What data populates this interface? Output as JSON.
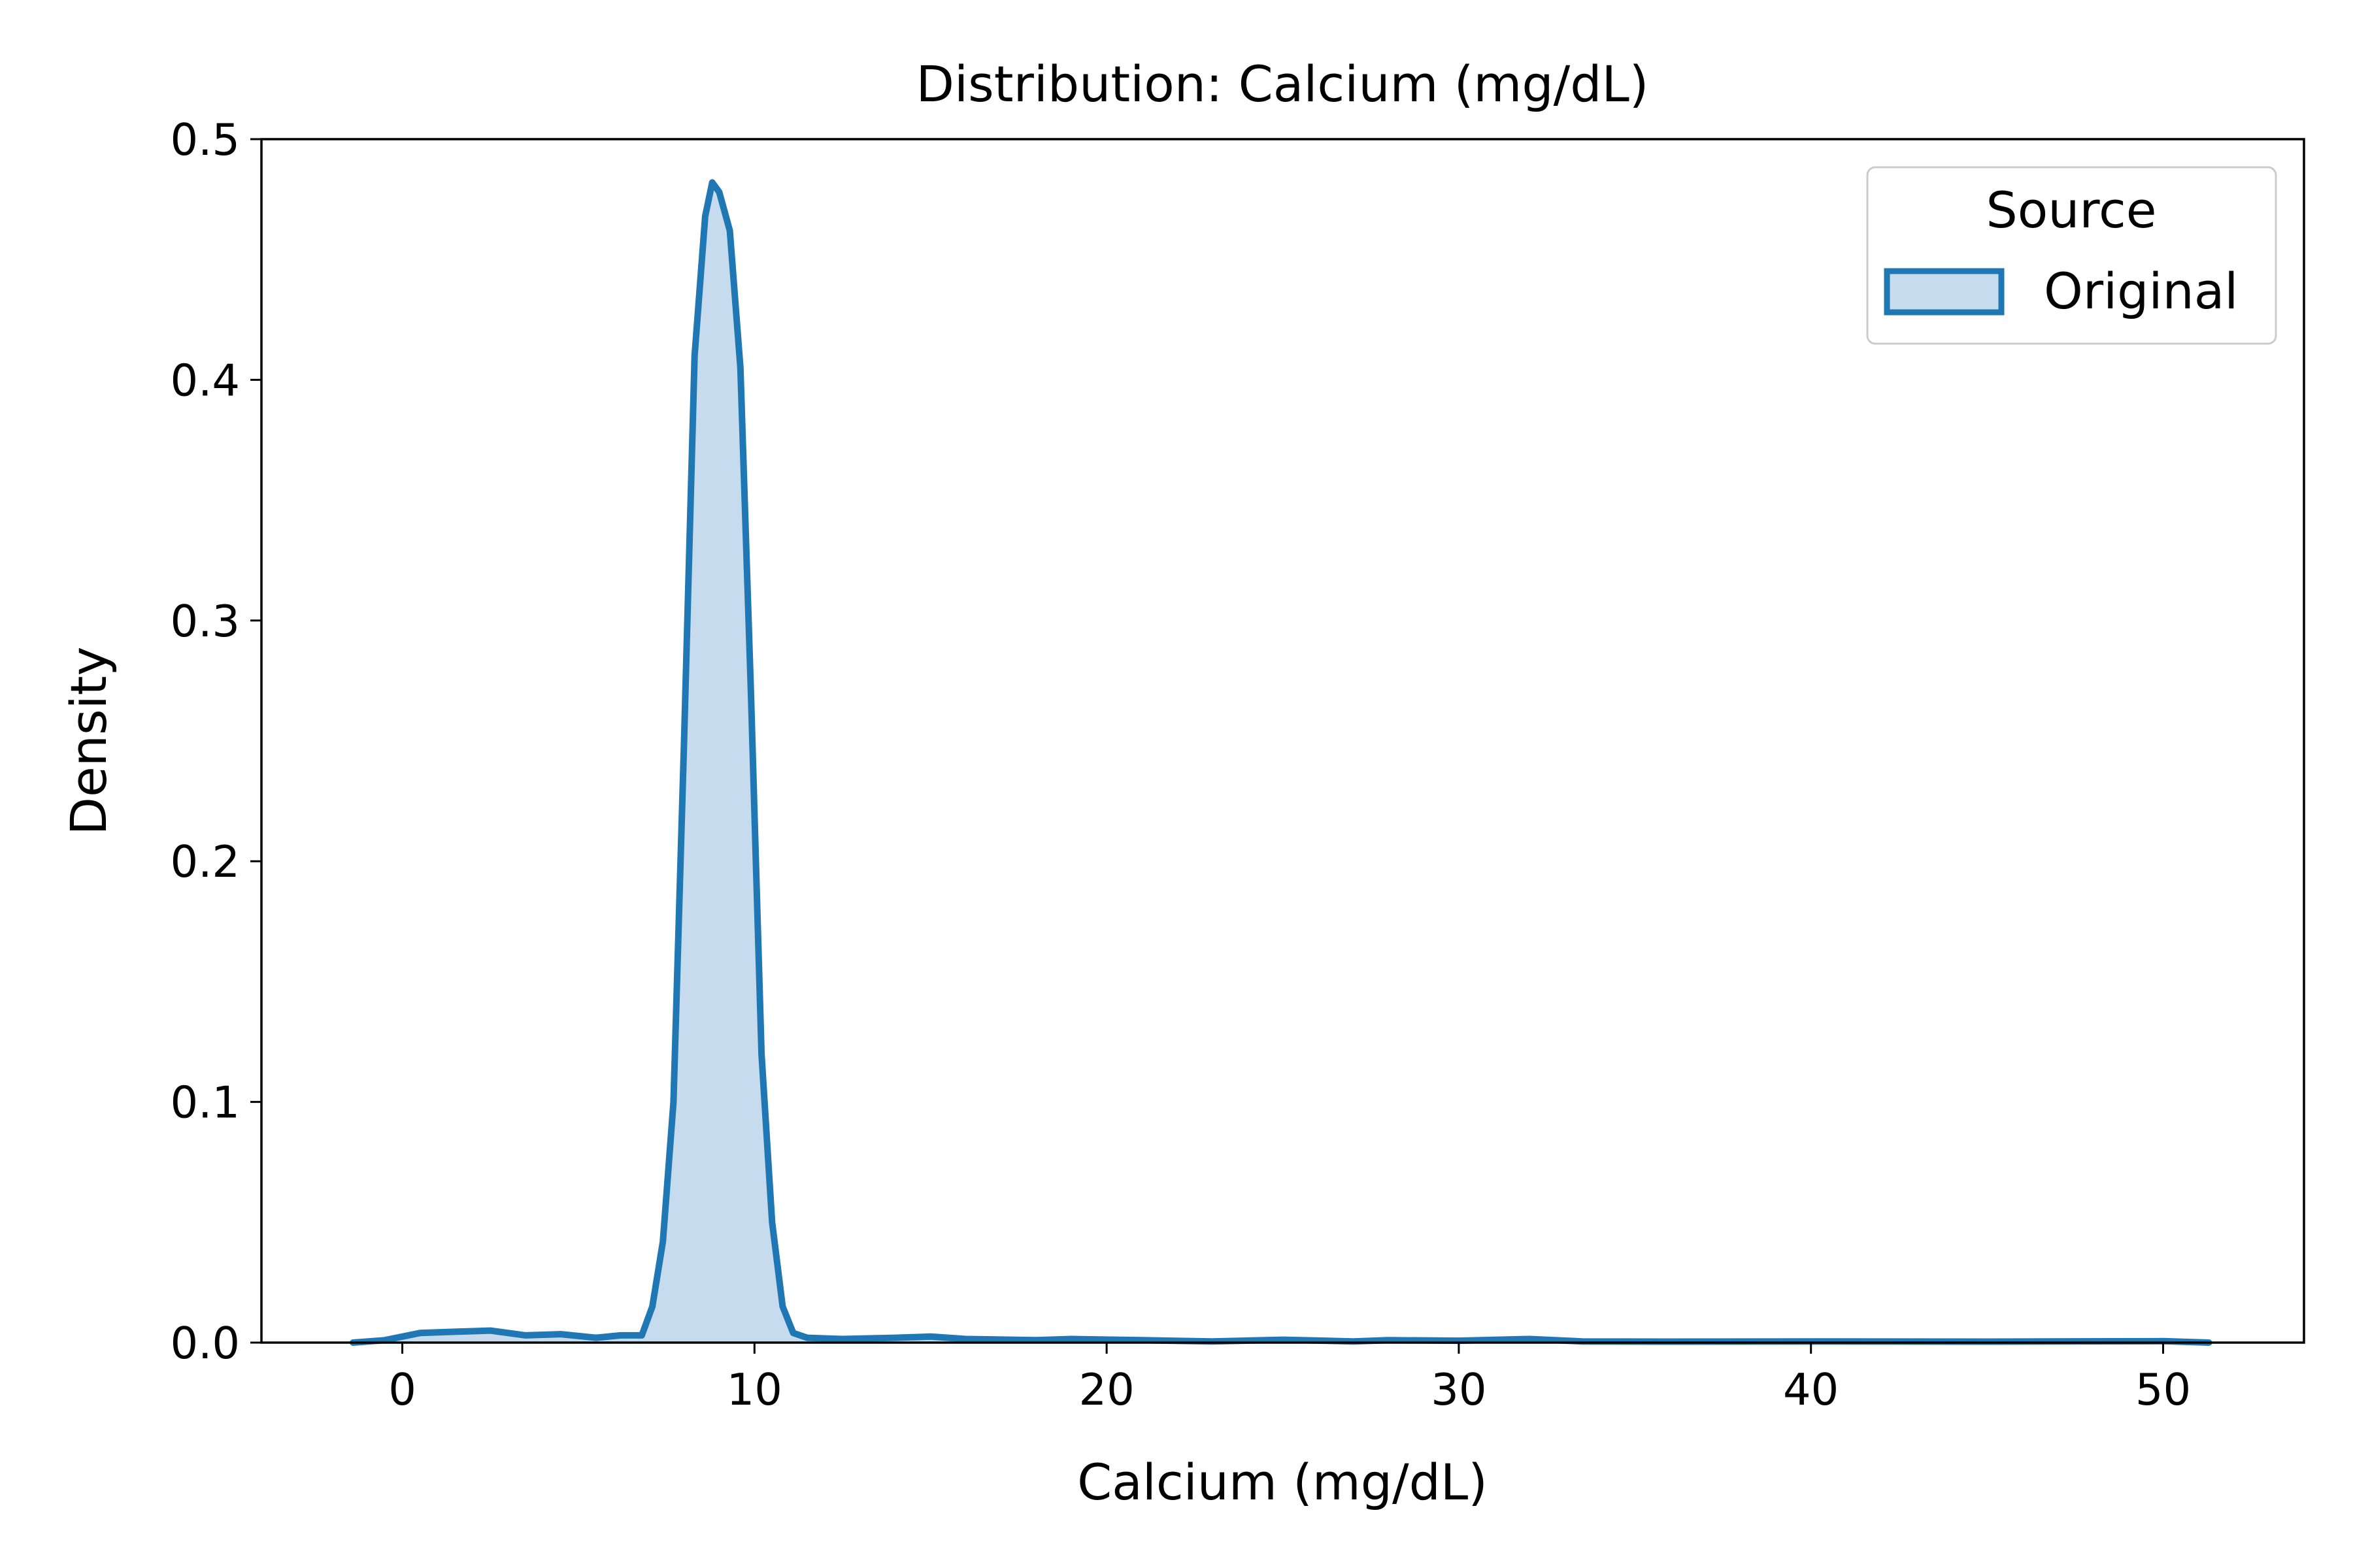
{
  "chart_data": {
    "type": "area",
    "title": "Distribution: Calcium (mg/dL)",
    "xlabel": "Calcium (mg/dL)",
    "ylabel": "Density",
    "xlim": [
      -4,
      54
    ],
    "ylim": [
      0,
      0.5
    ],
    "xticks": [
      0,
      10,
      20,
      30,
      40,
      50
    ],
    "yticks": [
      0.0,
      0.1,
      0.2,
      0.3,
      0.4,
      0.5
    ],
    "xtick_labels": [
      "0",
      "10",
      "20",
      "30",
      "40",
      "50"
    ],
    "ytick_labels": [
      "0.0",
      "0.1",
      "0.2",
      "0.3",
      "0.4",
      "0.5"
    ],
    "grid": false,
    "legend": {
      "title": "Source",
      "position": "top-right",
      "entries": [
        "Original"
      ]
    },
    "series": [
      {
        "name": "Original",
        "color": "#1f77b4",
        "fill_color": "#c6dbed",
        "x": [
          -1.4,
          -0.5,
          0.5,
          1.5,
          2.5,
          3.5,
          4.5,
          5.5,
          6.2,
          6.8,
          7.1,
          7.4,
          7.7,
          8.0,
          8.3,
          8.6,
          8.8,
          9.0,
          9.3,
          9.6,
          9.9,
          10.2,
          10.5,
          10.8,
          11.1,
          11.5,
          12.5,
          14.0,
          15.0,
          16.0,
          18.0,
          19.0,
          21.0,
          23.0,
          25.0,
          27.0,
          28.0,
          30.0,
          32.0,
          33.5,
          36.0,
          40.0,
          45.0,
          50.0,
          51.3
        ],
        "values": [
          0.0,
          0.001,
          0.004,
          0.0045,
          0.005,
          0.003,
          0.0035,
          0.002,
          0.003,
          0.003,
          0.015,
          0.042,
          0.1,
          0.25,
          0.41,
          0.468,
          0.482,
          0.478,
          0.462,
          0.405,
          0.27,
          0.12,
          0.05,
          0.015,
          0.004,
          0.002,
          0.0015,
          0.002,
          0.0025,
          0.0015,
          0.001,
          0.0015,
          0.001,
          0.0005,
          0.0012,
          0.0005,
          0.001,
          0.0008,
          0.0015,
          0.0005,
          0.0004,
          0.0005,
          0.0004,
          0.0006,
          0.0
        ]
      }
    ]
  },
  "colors": {
    "line": "#1f77b4",
    "fill": "#c6dbed",
    "axes": "#000000",
    "legend_border": "#cccccc"
  }
}
